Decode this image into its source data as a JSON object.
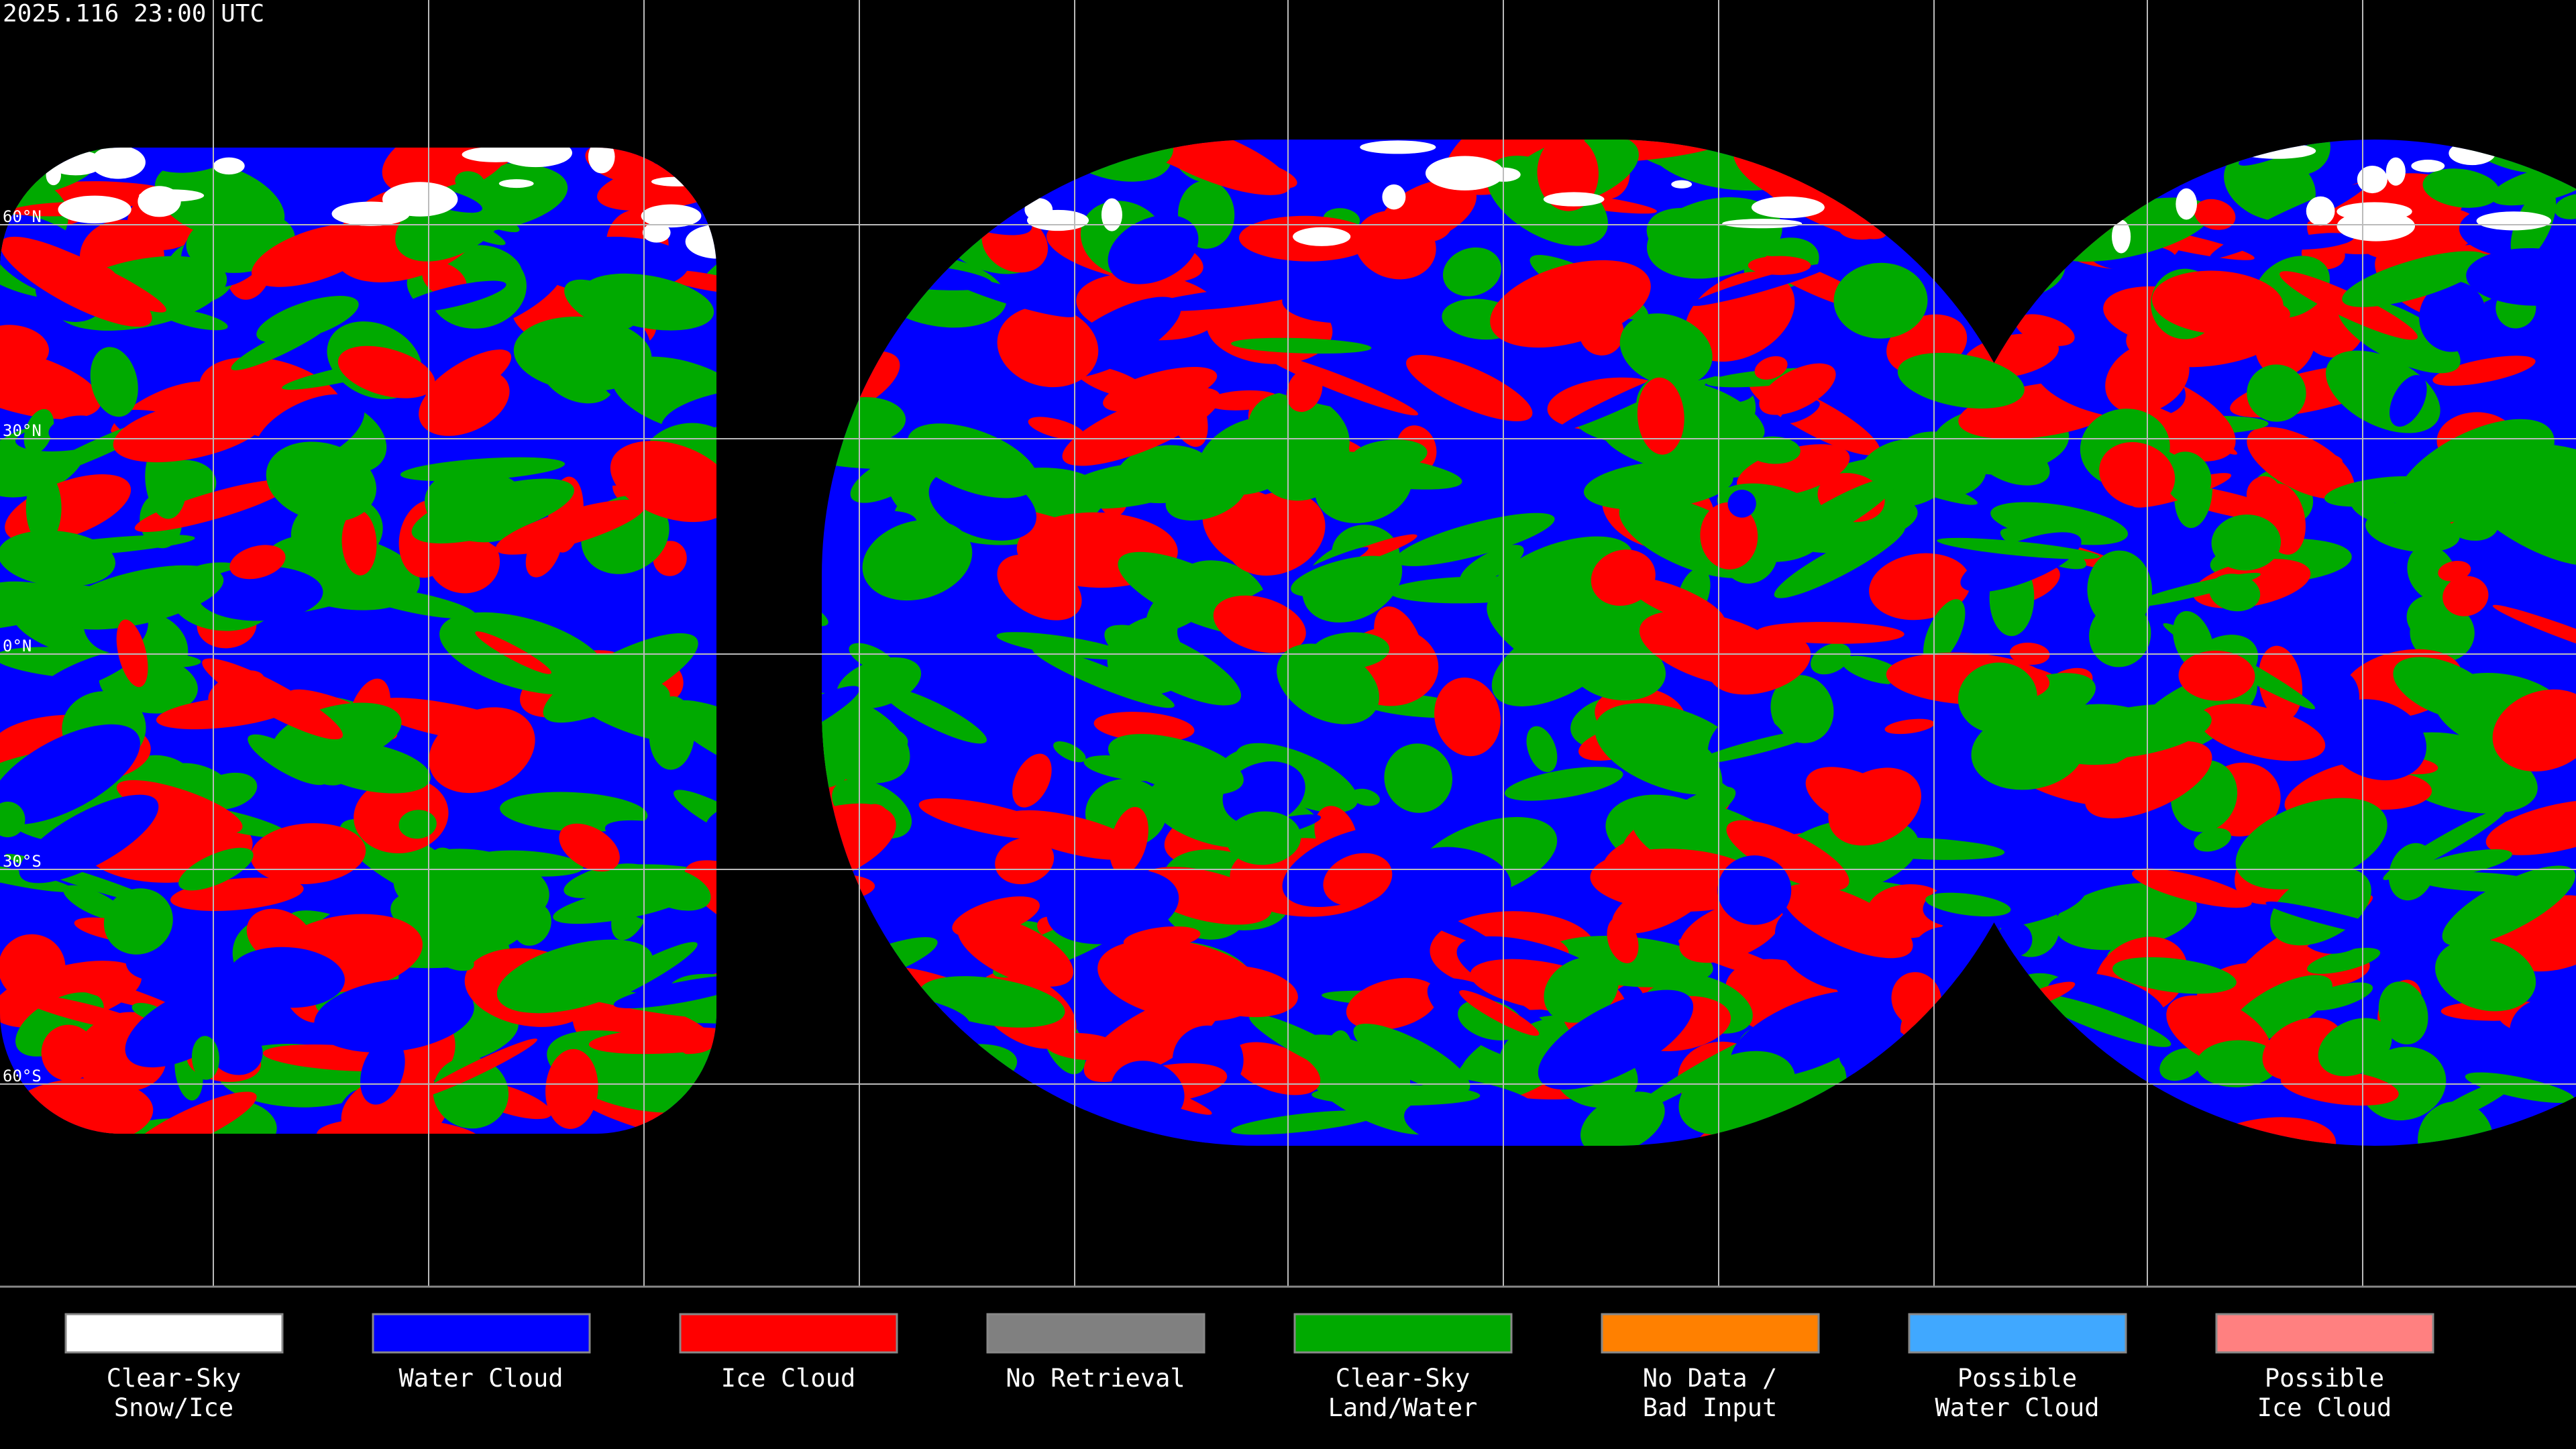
{
  "title": "2025.116 23:00 UTC",
  "lat_labels": [
    "60°N",
    "30°N",
    "0°N",
    "30°S",
    "60°S"
  ],
  "legend": {
    "items": [
      {
        "lines": [
          "Clear-Sky",
          "Snow/Ice"
        ],
        "color": "#ffffff"
      },
      {
        "lines": [
          "Water Cloud"
        ],
        "color": "#0000ff"
      },
      {
        "lines": [
          "Ice Cloud"
        ],
        "color": "#ff0000"
      },
      {
        "lines": [
          "No Retrieval"
        ],
        "color": "#808080"
      },
      {
        "lines": [
          "Clear-Sky",
          "Land/Water"
        ],
        "color": "#00aa00"
      },
      {
        "lines": [
          "No Data /",
          "Bad Input"
        ],
        "color": "#ff8000"
      },
      {
        "lines": [
          "Possible",
          "Water Cloud"
        ],
        "color": "#40a8ff"
      },
      {
        "lines": [
          "Possible",
          "Ice Cloud"
        ],
        "color": "#ff8080"
      }
    ]
  }
}
